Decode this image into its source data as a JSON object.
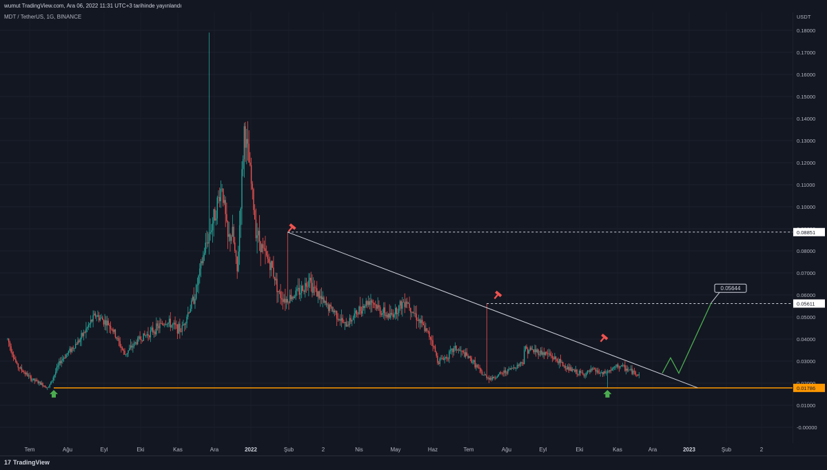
{
  "header": {
    "published": "wumut TradingView.com, Ara 06, 2022 11:31 UTC+3 tarihinde yayınlandı",
    "symbol": "MDT / TetherUS, 1G, BINANCE"
  },
  "footer": {
    "brand": "TradingView",
    "logo_mark": "17"
  },
  "chart_data": {
    "type": "candlestick",
    "title": "MDT / TetherUS, 1G, BINANCE",
    "currency": "USDT",
    "ylim": [
      -0.005,
      0.182
    ],
    "y_ticks": [
      "0.18000",
      "0.17000",
      "0.16000",
      "0.15000",
      "0.14000",
      "0.13000",
      "0.12000",
      "0.11000",
      "0.10000",
      "0.09000",
      "0.08000",
      "0.07000",
      "0.06000",
      "0.05000",
      "0.04000",
      "0.03000",
      "0.02000",
      "0.01000",
      "-0.00000"
    ],
    "x_ticks": [
      "Tem",
      "Ağu",
      "Eyl",
      "Eki",
      "Kas",
      "Ara",
      "2022",
      "Şub",
      "2",
      "Nis",
      "May",
      "Haz",
      "Tem",
      "Ağu",
      "Eyl",
      "Eki",
      "Kas",
      "Ara",
      "2023",
      "Şub",
      "2"
    ],
    "price_labels": [
      {
        "value": "0.08851",
        "style": "white"
      },
      {
        "value": "0.05611",
        "style": "white"
      },
      {
        "value": "0.01786",
        "style": "orange"
      }
    ],
    "callout": "0.05644",
    "key_points": [
      {
        "date": "2021-07-20",
        "price": 0.0179
      },
      {
        "date": "2021-12-04",
        "price": 0.179
      },
      {
        "date": "2022-02-09",
        "price": 0.0885
      },
      {
        "date": "2022-07-29",
        "price": 0.0561
      },
      {
        "date": "2022-11-09",
        "price": 0.018
      },
      {
        "date": "2022-12-06",
        "price": 0.0245
      }
    ],
    "annotations": {
      "support_level": 0.01786,
      "resistance_levels": [
        0.08851,
        0.05611
      ],
      "descending_trendline": [
        {
          "date": "2022-02-09",
          "price": 0.0885
        },
        {
          "date": "2023-01-25",
          "price": 0.0179
        }
      ],
      "projection_target": 0.05644,
      "down_markers": 3,
      "up_markers": 2
    },
    "colors": {
      "up": "#26a69a",
      "down": "#ef5350",
      "support": "#ff9800",
      "projection": "#4caf50",
      "trendline": "#d1d4dc",
      "background": "#131722"
    }
  }
}
